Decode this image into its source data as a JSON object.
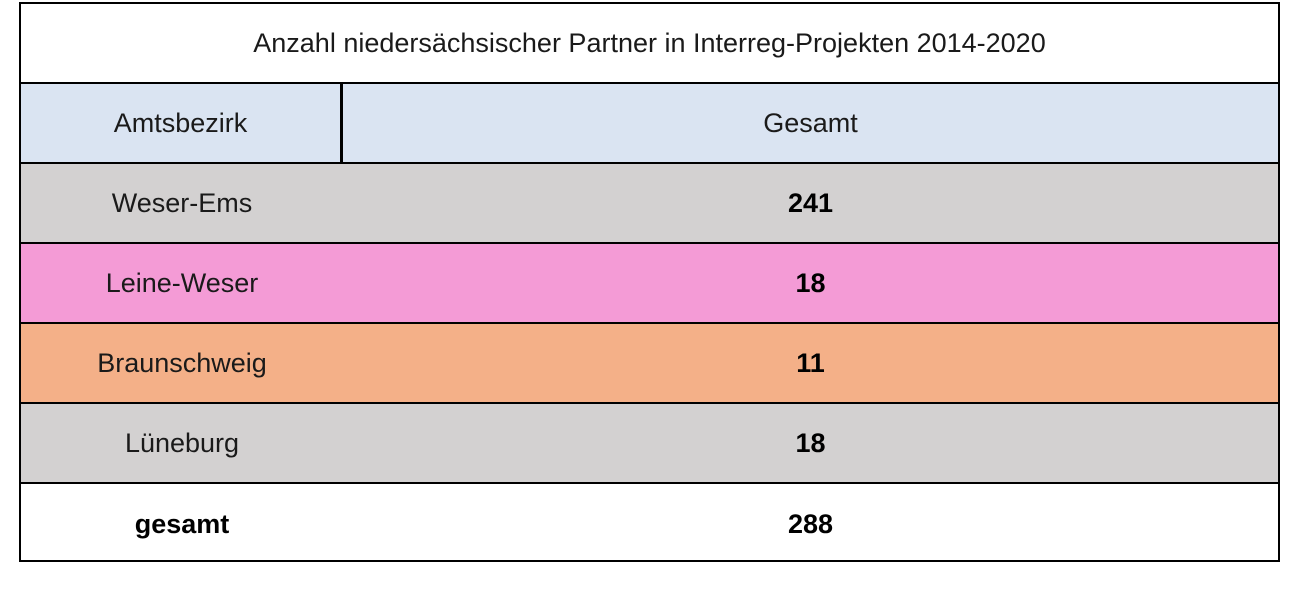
{
  "chart_data": {
    "type": "table",
    "title": "Anzahl niedersächsischer Partner in Interreg-Projekten 2014-2020",
    "columns": [
      "Amtsbezirk",
      "Gesamt"
    ],
    "rows": [
      {
        "label": "Weser-Ems",
        "value": 241,
        "color": "#d3d1d1"
      },
      {
        "label": "Leine-Weser",
        "value": 18,
        "color": "#f49bd6"
      },
      {
        "label": "Braunschweig",
        "value": 11,
        "color": "#f4b088"
      },
      {
        "label": "Lüneburg",
        "value": 18,
        "color": "#d3d1d1"
      }
    ],
    "total": {
      "label": "gesamt",
      "value": 288
    },
    "header_color": "#dae4f2"
  }
}
